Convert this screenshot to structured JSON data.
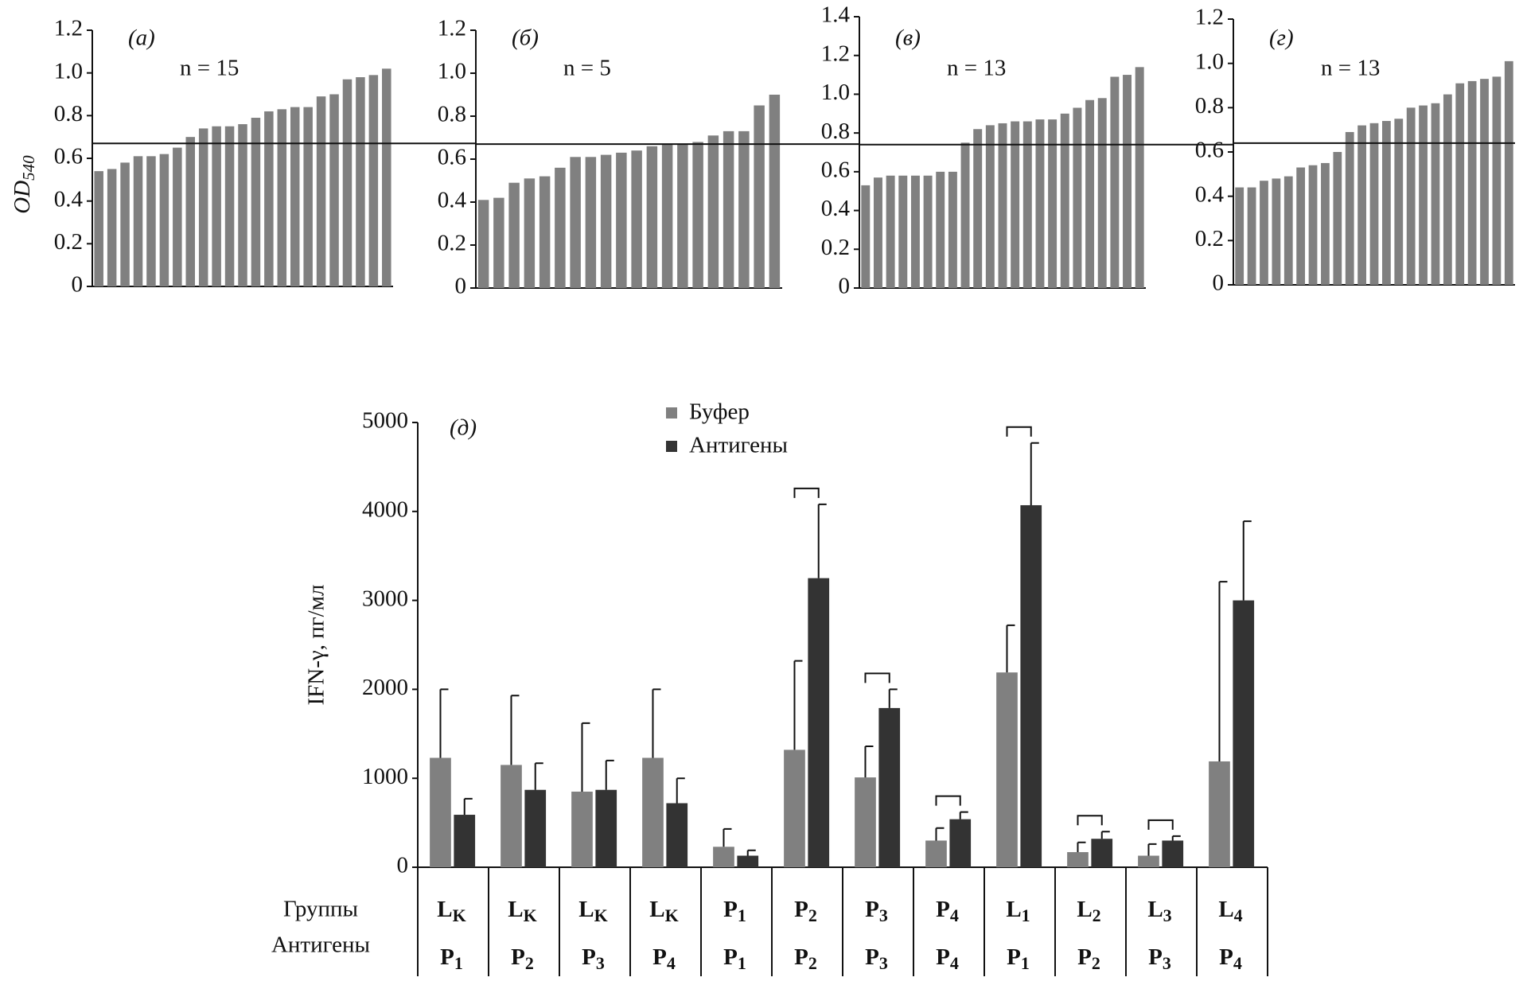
{
  "chart_data": [
    {
      "type": "bar",
      "panel": "(а)",
      "n_label": "n = 15",
      "ylabel": "OD",
      "ylabel_sub": "540",
      "color": "#808080",
      "threshold": 0.67,
      "values": [
        0.54,
        0.55,
        0.58,
        0.61,
        0.61,
        0.62,
        0.65,
        0.7,
        0.74,
        0.75,
        0.75,
        0.76,
        0.79,
        0.82,
        0.83,
        0.84,
        0.84,
        0.89,
        0.9,
        0.97,
        0.98,
        0.99,
        1.02
      ],
      "ylim": [
        0,
        1.2
      ],
      "yticks": [
        0,
        0.2,
        0.4,
        0.6,
        0.8,
        {
          "value": 1,
          "label": "1.0"
        },
        1.2
      ]
    },
    {
      "type": "bar",
      "panel": "(б)",
      "n_label": "n = 5",
      "color": "#808080",
      "threshold": 0.67,
      "values": [
        0.41,
        0.42,
        0.49,
        0.51,
        0.52,
        0.56,
        0.61,
        0.61,
        0.62,
        0.63,
        0.64,
        0.66,
        0.67,
        0.67,
        0.68,
        0.71,
        0.73,
        0.73,
        0.85,
        0.9
      ],
      "ylim": [
        0,
        1.2
      ],
      "yticks": [
        0,
        0.2,
        0.4,
        0.6,
        0.8,
        {
          "value": 1,
          "label": "1.0"
        },
        1.2
      ]
    },
    {
      "type": "bar",
      "panel": "(в)",
      "n_label": "n = 13",
      "color": "#808080",
      "threshold": 0.74,
      "values": [
        0.53,
        0.57,
        0.58,
        0.58,
        0.58,
        0.58,
        0.6,
        0.6,
        0.75,
        0.82,
        0.84,
        0.85,
        0.86,
        0.86,
        0.87,
        0.87,
        0.9,
        0.93,
        0.97,
        0.98,
        1.09,
        1.1,
        1.14
      ],
      "ylim": [
        0,
        1.4
      ],
      "yticks": [
        0,
        0.2,
        0.4,
        0.6,
        0.8,
        {
          "value": 1,
          "label": "1.0"
        },
        1.2,
        1.4
      ]
    },
    {
      "type": "bar",
      "panel": "(г)",
      "n_label": "n = 13",
      "color": "#808080",
      "threshold": 0.64,
      "values": [
        0.44,
        0.44,
        0.47,
        0.48,
        0.49,
        0.53,
        0.54,
        0.55,
        0.6,
        0.69,
        0.72,
        0.73,
        0.74,
        0.75,
        0.8,
        0.81,
        0.82,
        0.86,
        0.91,
        0.92,
        0.93,
        0.94,
        1.01
      ],
      "ylim": [
        0,
        1.2
      ],
      "yticks": [
        0,
        0.2,
        0.4,
        0.6,
        0.8,
        {
          "value": 1,
          "label": "1.0"
        },
        1.2
      ]
    },
    {
      "type": "grouped_bar",
      "panel": "(д)",
      "ylabel": "IFN-γ, пг/мл",
      "row_titles": [
        "Группы",
        "Антигены"
      ],
      "groups": [
        [
          "L",
          "K"
        ],
        [
          "L",
          "K"
        ],
        [
          "L",
          "K"
        ],
        [
          "L",
          "K"
        ],
        [
          "P",
          "1"
        ],
        [
          "P",
          "2"
        ],
        [
          "P",
          "3"
        ],
        [
          "P",
          "4"
        ],
        [
          "L",
          "1"
        ],
        [
          "L",
          "2"
        ],
        [
          "L",
          "3"
        ],
        [
          "L",
          "4"
        ]
      ],
      "antigens": [
        [
          "P",
          "1"
        ],
        [
          "P",
          "2"
        ],
        [
          "P",
          "3"
        ],
        [
          "P",
          "4"
        ],
        [
          "P",
          "1"
        ],
        [
          "P",
          "2"
        ],
        [
          "P",
          "3"
        ],
        [
          "P",
          "4"
        ],
        [
          "P",
          "1"
        ],
        [
          "P",
          "2"
        ],
        [
          "P",
          "3"
        ],
        [
          "P",
          "4"
        ]
      ],
      "significant": [
        false,
        false,
        false,
        false,
        false,
        true,
        true,
        true,
        true,
        true,
        true,
        false
      ],
      "series": [
        {
          "name": "Буфер",
          "color": "#808080",
          "values": [
            1230,
            1150,
            850,
            1230,
            230,
            1320,
            1010,
            300,
            2190,
            170,
            130,
            1190
          ],
          "errors": [
            770,
            780,
            770,
            770,
            200,
            1000,
            350,
            140,
            530,
            110,
            130,
            2020
          ]
        },
        {
          "name": "Антигены",
          "color": "#333333",
          "values": [
            590,
            870,
            870,
            720,
            130,
            3250,
            1790,
            540,
            4070,
            320,
            300,
            3000
          ],
          "errors": [
            180,
            300,
            330,
            280,
            60,
            830,
            210,
            80,
            700,
            80,
            50,
            890
          ]
        }
      ],
      "ylim": [
        0,
        5000
      ],
      "yticks": [
        0,
        1000,
        2000,
        3000,
        4000,
        5000
      ]
    }
  ]
}
